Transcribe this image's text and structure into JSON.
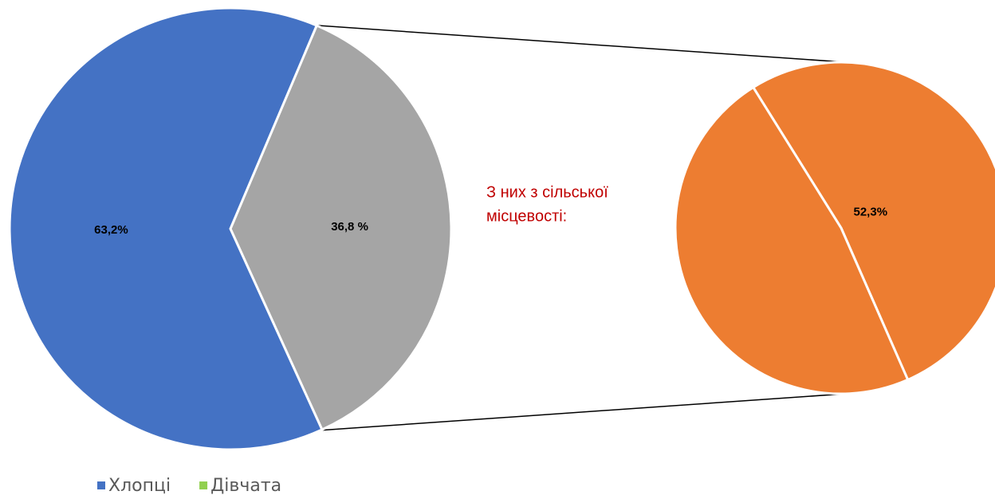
{
  "chart_data": [
    {
      "type": "pie",
      "categories": [
        "Хлопці",
        "Дівчата"
      ],
      "values": [
        63.2,
        36.8
      ],
      "value_labels": [
        "63,2%",
        "36,8 %"
      ],
      "colors": [
        "#4472c4",
        "#a5a5a5"
      ],
      "legend_colors": [
        "#4472c4",
        "#92d050"
      ],
      "legend": "bottom"
    },
    {
      "type": "pie",
      "annotation": [
        "З них з сільської",
        "місцевості:"
      ],
      "values": [
        52.3,
        47.7
      ],
      "value_labels": [
        "52,3%",
        null
      ],
      "colors": [
        "#ed7d31",
        "#ed7d31"
      ]
    }
  ]
}
